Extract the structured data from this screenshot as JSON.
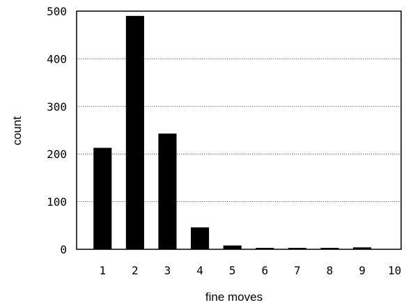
{
  "chart_data": {
    "type": "bar",
    "title": "",
    "xlabel": "fine moves",
    "ylabel": "count",
    "categories": [
      "1",
      "2",
      "3",
      "4",
      "5",
      "6",
      "7",
      "8",
      "9",
      "10"
    ],
    "values": [
      213,
      490,
      243,
      46,
      8,
      3,
      3,
      3,
      4,
      0
    ],
    "ylim": [
      0,
      500
    ],
    "yticks": [
      "0",
      "100",
      "200",
      "300",
      "400",
      "500"
    ],
    "grid": "horizontal dotted",
    "legend": "none",
    "bar_color": "#000000"
  }
}
